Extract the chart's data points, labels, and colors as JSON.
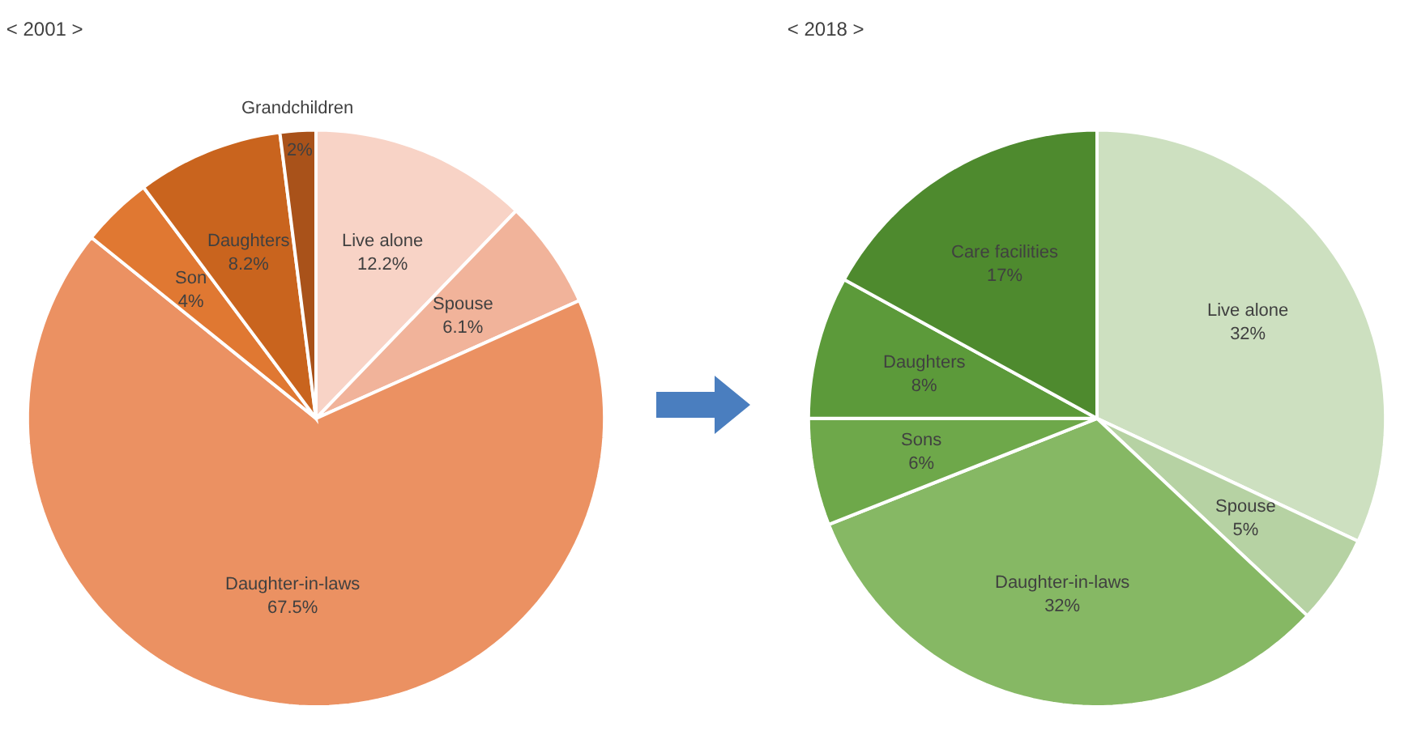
{
  "chart_data": [
    {
      "type": "pie",
      "title": "< 2001 >",
      "categories": [
        "Live alone",
        "Spouse",
        "Daughter-in-laws",
        "Son",
        "Daughters",
        "Grandchildren"
      ],
      "values": [
        12.2,
        6.1,
        67.5,
        4,
        8.2,
        2
      ],
      "value_labels": [
        "12.2%",
        "6.1%",
        "67.5%",
        "4%",
        "8.2%",
        "2%"
      ],
      "colors": [
        "#f8d3c6",
        "#f1b39a",
        "#eb9162",
        "#e07832",
        "#c9641e",
        "#a9521a"
      ]
    },
    {
      "type": "pie",
      "title": "< 2018 >",
      "categories": [
        "Live alone",
        "Spouse",
        "Daughter-in-laws",
        "Sons",
        "Daughters",
        "Care facilities"
      ],
      "values": [
        32,
        5,
        32,
        6,
        8,
        17
      ],
      "value_labels": [
        "32%",
        "5%",
        "32%",
        "6%",
        "8%",
        "17%"
      ],
      "colors": [
        "#cde0c0",
        "#b6d2a3",
        "#86b864",
        "#6ea84a",
        "#5c9a3a",
        "#4e8a2e"
      ]
    }
  ]
}
